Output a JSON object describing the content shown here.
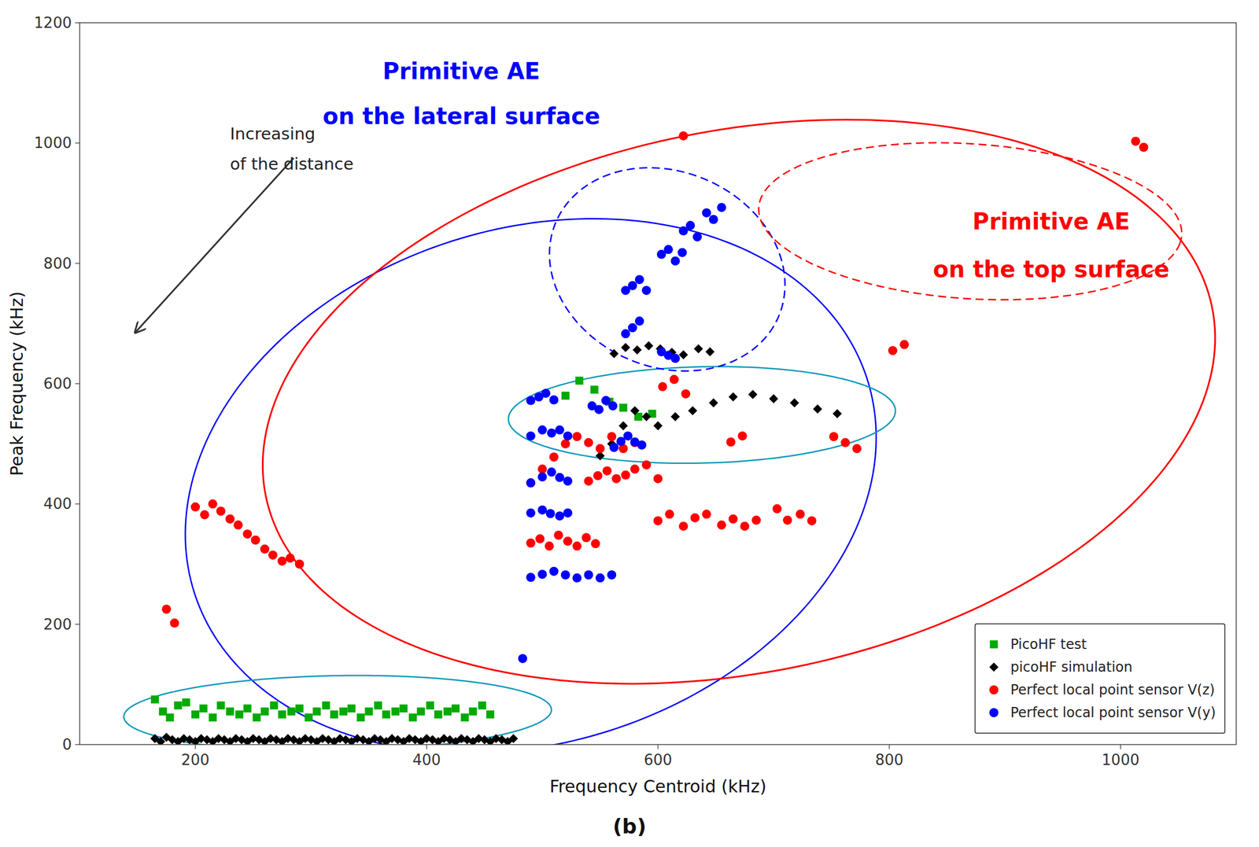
{
  "chart_data": {
    "type": "scatter",
    "title": "(b)",
    "x_label": "Frequency Centroid (kHz)",
    "y_label": "Peak Frequency (kHz)",
    "xlim": [
      100,
      1100
    ],
    "ylim": [
      0,
      1200
    ],
    "xticks": [
      200,
      400,
      600,
      800,
      1000
    ],
    "yticks": [
      0,
      200,
      400,
      600,
      800,
      1000,
      1200
    ],
    "grid": false,
    "legend": "lower right",
    "series": [
      {
        "name": "PicoHF test",
        "color": "#00aa00",
        "marker": "square",
        "x": [
          165,
          172,
          178,
          185,
          192,
          200,
          207,
          215,
          222,
          230,
          238,
          245,
          253,
          260,
          268,
          275,
          283,
          290,
          298,
          305,
          313,
          320,
          328,
          335,
          343,
          350,
          358,
          365,
          373,
          380,
          388,
          395,
          403,
          410,
          418,
          425,
          433,
          440,
          448,
          455,
          520,
          532,
          545,
          558,
          570,
          583,
          595
        ],
        "values": [
          75,
          55,
          45,
          65,
          70,
          50,
          60,
          45,
          65,
          55,
          50,
          60,
          45,
          55,
          65,
          50,
          55,
          60,
          45,
          55,
          65,
          50,
          55,
          60,
          45,
          55,
          65,
          50,
          55,
          60,
          45,
          55,
          65,
          50,
          55,
          60,
          45,
          55,
          65,
          50,
          580,
          605,
          590,
          570,
          560,
          545,
          550
        ]
      },
      {
        "name": "picoHF simulation",
        "color": "black",
        "marker": "diamond",
        "x": [
          165,
          170,
          175,
          180,
          185,
          190,
          195,
          200,
          205,
          210,
          215,
          220,
          225,
          230,
          235,
          240,
          245,
          250,
          255,
          260,
          265,
          270,
          275,
          280,
          285,
          290,
          295,
          300,
          305,
          310,
          315,
          320,
          325,
          330,
          335,
          340,
          345,
          350,
          355,
          360,
          365,
          370,
          375,
          380,
          385,
          390,
          395,
          400,
          405,
          410,
          415,
          420,
          425,
          430,
          435,
          440,
          445,
          450,
          455,
          460,
          465,
          470,
          475,
          550,
          560,
          570,
          580,
          590,
          600,
          615,
          630,
          648,
          665,
          682,
          700,
          718,
          738,
          755,
          562,
          572,
          582,
          592,
          602,
          612,
          622,
          635,
          645
        ],
        "values": [
          10,
          5,
          12,
          8,
          5,
          10,
          8,
          5,
          10,
          8,
          5,
          10,
          8,
          5,
          10,
          8,
          5,
          10,
          8,
          5,
          10,
          8,
          5,
          10,
          8,
          5,
          10,
          8,
          5,
          10,
          8,
          5,
          10,
          8,
          5,
          10,
          8,
          5,
          10,
          8,
          5,
          10,
          8,
          5,
          10,
          8,
          5,
          10,
          8,
          5,
          10,
          8,
          5,
          10,
          8,
          5,
          10,
          8,
          5,
          10,
          8,
          5,
          10,
          480,
          500,
          530,
          555,
          545,
          530,
          545,
          555,
          568,
          578,
          582,
          575,
          568,
          558,
          550,
          650,
          660,
          656,
          663,
          658,
          652,
          648,
          658,
          653
        ]
      },
      {
        "name": "Perfect local point sensor V(z)",
        "color": "red",
        "marker": "circle",
        "x": [
          175,
          182,
          200,
          208,
          215,
          222,
          230,
          237,
          245,
          252,
          260,
          267,
          275,
          282,
          290,
          490,
          500,
          510,
          520,
          530,
          540,
          550,
          560,
          570,
          580,
          490,
          498,
          506,
          514,
          522,
          530,
          538,
          546,
          540,
          548,
          556,
          564,
          572,
          580,
          590,
          600,
          600,
          610,
          622,
          632,
          642,
          655,
          665,
          675,
          685,
          703,
          712,
          723,
          733,
          752,
          762,
          772,
          604,
          614,
          624,
          663,
          673,
          803,
          813,
          622,
          1013,
          1020
        ],
        "values": [
          225,
          202,
          395,
          382,
          400,
          388,
          375,
          365,
          350,
          340,
          325,
          315,
          305,
          310,
          300,
          435,
          458,
          478,
          500,
          512,
          502,
          492,
          512,
          492,
          502,
          335,
          342,
          330,
          348,
          338,
          330,
          344,
          334,
          438,
          447,
          455,
          442,
          448,
          458,
          465,
          442,
          372,
          383,
          363,
          377,
          383,
          365,
          375,
          363,
          373,
          392,
          373,
          383,
          372,
          512,
          502,
          492,
          595,
          607,
          583,
          503,
          513,
          655,
          665,
          1012,
          1003,
          993
        ]
      },
      {
        "name": "Perfect local point sensor V(y)",
        "color": "blue",
        "marker": "circle",
        "x": [
          490,
          500,
          510,
          520,
          530,
          540,
          550,
          560,
          490,
          500,
          507,
          515,
          522,
          490,
          500,
          508,
          515,
          522,
          490,
          500,
          508,
          515,
          522,
          490,
          497,
          503,
          510,
          543,
          549,
          555,
          561,
          562,
          568,
          574,
          580,
          586,
          603,
          609,
          615,
          572,
          578,
          584,
          590,
          603,
          609,
          615,
          621,
          622,
          628,
          634,
          642,
          648,
          655,
          572,
          578,
          584,
          483
        ],
        "values": [
          278,
          283,
          288,
          282,
          277,
          282,
          277,
          282,
          385,
          390,
          384,
          380,
          385,
          435,
          445,
          453,
          444,
          438,
          513,
          523,
          518,
          523,
          513,
          572,
          578,
          584,
          573,
          563,
          557,
          572,
          563,
          494,
          504,
          513,
          503,
          498,
          653,
          647,
          642,
          755,
          763,
          773,
          755,
          815,
          823,
          804,
          818,
          854,
          863,
          844,
          884,
          873,
          893,
          683,
          693,
          704,
          143
        ]
      }
    ],
    "ellipses": [
      {
        "x": 490,
        "y": 430,
        "width": 580,
        "height": 900,
        "angle": -12,
        "color": "blue",
        "line_style": "solid"
      },
      {
        "x": 323,
        "y": 52,
        "width": 370,
        "height": 125,
        "angle": 2,
        "color": "#1199bb",
        "line_style": "solid"
      },
      {
        "x": 638,
        "y": 548,
        "width": 335,
        "height": 160,
        "angle": 3,
        "color": "#1199bb",
        "line_style": "solid"
      },
      {
        "x": 608,
        "y": 790,
        "width": 200,
        "height": 340,
        "angle": 8,
        "color": "blue",
        "line_style": "dashed"
      },
      {
        "x": 670,
        "y": 570,
        "width": 760,
        "height": 990,
        "angle": -30,
        "color": "red",
        "line_style": "solid"
      },
      {
        "x": 870,
        "y": 870,
        "width": 370,
        "height": 255,
        "angle": -12,
        "color": "red",
        "line_style": "dashed"
      }
    ],
    "annotations": [
      {
        "text": "Primitive AE",
        "x": 430,
        "y": 1120,
        "color": "blue"
      },
      {
        "text": "on the lateral surface",
        "x": 430,
        "y": 1045,
        "color": "blue"
      },
      {
        "text": "Primitive AE",
        "x": 940,
        "y": 870,
        "color": "red"
      },
      {
        "text": "on the top surface",
        "x": 940,
        "y": 790,
        "color": "red"
      }
    ],
    "arrows": [
      {
        "x_start": 285,
        "y_start": 975,
        "x_end": 148,
        "y_end": 685,
        "color": "#333333",
        "labels": [
          {
            "text": "Increasing",
            "x": 230,
            "y": 1015
          },
          {
            "text": "of the distance",
            "x": 230,
            "y": 965
          }
        ]
      }
    ]
  }
}
